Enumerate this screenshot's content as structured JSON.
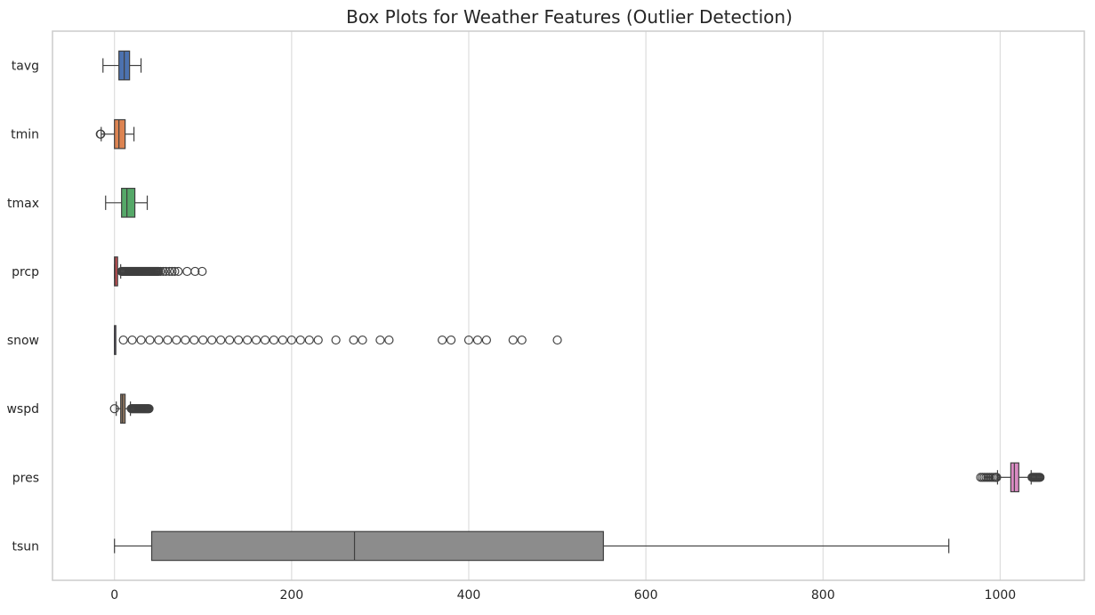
{
  "chart_data": {
    "type": "box",
    "orientation": "horizontal",
    "title": "Box Plots for Weather Features (Outlier Detection)",
    "xlabel": "",
    "ylabel": "",
    "xlim": [
      -70,
      1095
    ],
    "xticks": [
      0,
      200,
      400,
      600,
      800,
      1000
    ],
    "xtick_labels": [
      "0",
      "200",
      "400",
      "600",
      "800",
      "1000"
    ],
    "grid": "vertical",
    "legend": "none",
    "series": [
      {
        "name": "tavg",
        "color": "#4C72B0",
        "whisker_low": -13,
        "q1": 5,
        "median": 11,
        "q3": 17,
        "whisker_high": 30,
        "outliers": []
      },
      {
        "name": "tmin",
        "color": "#DD8452",
        "whisker_low": -15,
        "q1": 0,
        "median": 5,
        "q3": 12,
        "whisker_high": 22,
        "outliers": [
          -16,
          -15.5
        ]
      },
      {
        "name": "tmax",
        "color": "#55A868",
        "whisker_low": -10,
        "q1": 8,
        "median": 14,
        "q3": 23,
        "whisker_high": 37,
        "outliers": []
      },
      {
        "name": "prcp",
        "color": "#C44E52",
        "whisker_low": 0,
        "q1": 0,
        "median": 0.5,
        "q3": 3.5,
        "whisker_high": 7,
        "outliers": [
          8,
          9,
          10,
          11,
          12,
          13,
          14,
          15,
          16,
          17,
          18,
          19,
          20,
          21,
          22,
          23,
          24,
          25,
          26,
          27,
          28,
          29,
          30,
          31,
          32,
          33,
          34,
          35,
          36,
          37,
          38,
          39,
          40,
          41,
          42,
          43,
          44,
          45,
          46,
          47,
          48,
          49,
          50,
          52,
          55,
          58,
          62,
          65,
          68,
          72,
          82,
          91,
          99
        ]
      },
      {
        "name": "snow",
        "color": "#8172B3",
        "whisker_low": 0,
        "q1": 0,
        "median": 0,
        "q3": 0,
        "whisker_high": 0,
        "outliers": [
          10,
          20,
          30,
          40,
          50,
          60,
          70,
          80,
          90,
          100,
          110,
          120,
          130,
          140,
          150,
          160,
          170,
          180,
          190,
          200,
          210,
          220,
          230,
          250,
          270,
          280,
          300,
          310,
          370,
          380,
          400,
          410,
          420,
          450,
          460,
          500
        ]
      },
      {
        "name": "wspd",
        "color": "#937860",
        "whisker_low": 2,
        "q1": 7,
        "median": 9,
        "q3": 12,
        "whisker_high": 18,
        "outliers": [
          0,
          19,
          20,
          21,
          22,
          23,
          24,
          25,
          26,
          27,
          28,
          29,
          30,
          31,
          32,
          33,
          34,
          35,
          36,
          37,
          38,
          39
        ]
      },
      {
        "name": "pres",
        "color": "#DA8BC3",
        "whisker_low": 997,
        "q1": 1012,
        "median": 1016,
        "q3": 1021,
        "whisker_high": 1035,
        "outliers": [
          978,
          980,
          982,
          984,
          986,
          988,
          990,
          992,
          994,
          995,
          996,
          1036,
          1037,
          1038,
          1039,
          1040,
          1041,
          1042,
          1043,
          1044,
          1045
        ]
      },
      {
        "name": "tsun",
        "color": "#8C8C8C",
        "whisker_low": 0,
        "q1": 42,
        "median": 271,
        "q3": 552,
        "whisker_high": 942,
        "outliers": []
      }
    ]
  }
}
